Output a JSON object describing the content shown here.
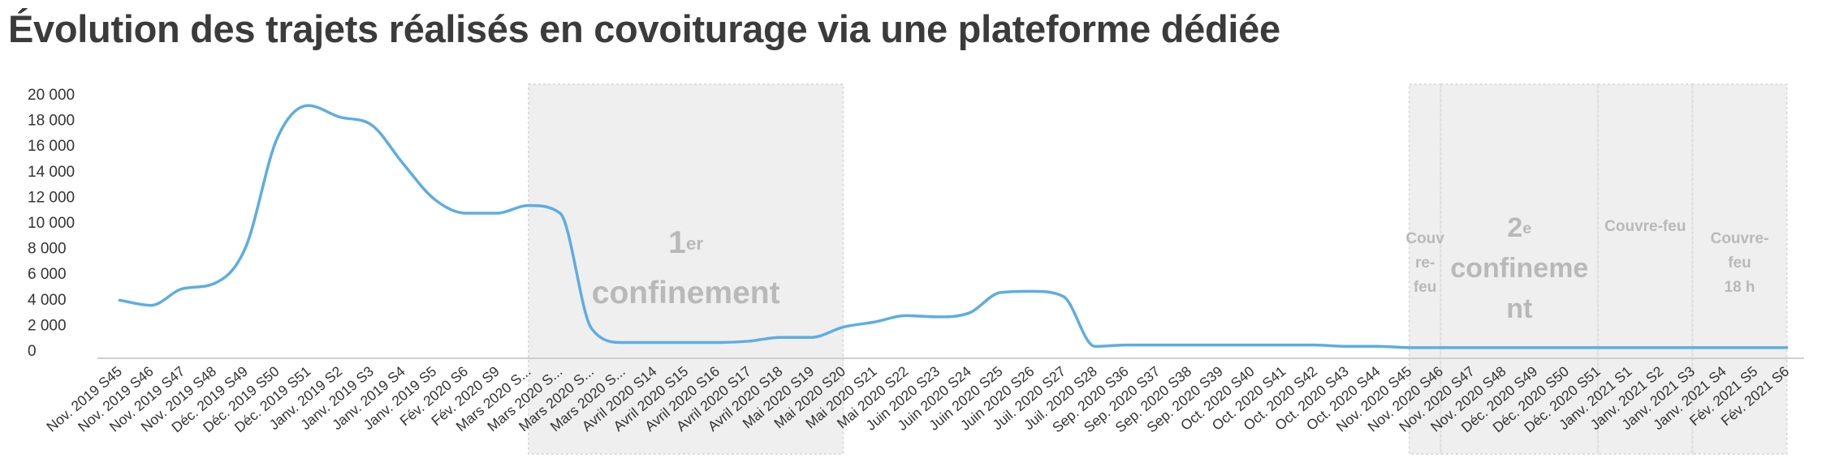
{
  "chart_data": {
    "type": "line",
    "title": "Évolution des trajets réalisés en covoiturage via une plateforme dédiée",
    "xlabel": "",
    "ylabel": "",
    "ylim": [
      0,
      20000
    ],
    "y_ticks": [
      "20 000",
      "18 000",
      "16 000",
      "14 000",
      "12 000",
      "10 000",
      "8 000",
      "6 000",
      "4 000",
      "2 000",
      "0"
    ],
    "categories": [
      "Nov. 2019 S45",
      "Nov. 2019 S46",
      "Nov. 2019 S47",
      "Nov. 2019 S48",
      "Déc. 2019 S49",
      "Déc. 2019 S50",
      "Déc. 2019 S51",
      "Janv. 2019 S2",
      "Janv. 2019 S3",
      "Janv. 2019 S4",
      "Janv. 2019 S5",
      "Fév. 2020 S6",
      "Fév. 2020 S9",
      "Mars 2020 S...",
      "Mars 2020 S...",
      "Mars 2020 S...",
      "Mars 2020 S...",
      "Avril 2020 S14",
      "Avril 2020 S15",
      "Avril 2020 S16",
      "Avril 2020 S17",
      "Avril 2020 S18",
      "Mai 2020 S19",
      "Mai 2020 S20",
      "Mai 2020 S21",
      "Mai 2020 S22",
      "Juin 2020 S23",
      "Juin 2020 S24",
      "Juin 2020 S25",
      "Juin 2020 S26",
      "Juil. 2020 S27",
      "Juil. 2020 S28",
      "Sep. 2020 S36",
      "Sep. 2020 S37",
      "Sep. 2020 S38",
      "Sep. 2020 S39",
      "Oct. 2020 S40",
      "Oct. 2020 S41",
      "Oct. 2020 S42",
      "Oct. 2020 S43",
      "Oct. 2020 S44",
      "Nov. 2020 S45",
      "Nov. 2020 S46",
      "Nov. 2020 S47",
      "Nov. 2020 S48",
      "Déc. 2020 S49",
      "Déc. 2020 S50",
      "Déc. 2020 S51",
      "Janv. 2021 S1",
      "Janv. 2021 S2",
      "Janv. 2021 S3",
      "Janv. 2021 S4",
      "Fév. 2021 S5",
      "Fév. 2021 S6"
    ],
    "series": [
      {
        "values": [
          3900,
          3500,
          4800,
          5200,
          8000,
          16500,
          19100,
          18200,
          17600,
          14600,
          11800,
          10700,
          10700,
          11300,
          10700,
          1700,
          600,
          600,
          600,
          600,
          700,
          1000,
          1000,
          1800,
          2200,
          2700,
          2600,
          2900,
          4500,
          4600,
          4200,
          300,
          400,
          400,
          400,
          400,
          400,
          400,
          400,
          300,
          300,
          200,
          200,
          200,
          200,
          200,
          200,
          200,
          200,
          200,
          200,
          200,
          200,
          200
        ]
      }
    ],
    "line_color": "#5dade2",
    "band_color": "#efefef",
    "grid": false,
    "annotations": [
      {
        "start": "Mars 2020 S...",
        "end": "Mai 2020 S20",
        "main": "1",
        "sup": "er",
        "line2": "confinement",
        "size": "large"
      },
      {
        "start": "Nov. 2020 S45",
        "end": "Nov. 2020 S46",
        "lines": [
          "Couv",
          "re-",
          "feu"
        ],
        "size": "small"
      },
      {
        "start": "Nov. 2020 S46",
        "end": "Déc. 2020 S51",
        "main": "2",
        "sup": "e",
        "line2": "confineme",
        "line3": "nt",
        "size": "medium"
      },
      {
        "start": "Déc. 2020 S51",
        "end": "Janv. 2021 S3",
        "lines": [
          "Couvre-feu"
        ],
        "size": "small"
      },
      {
        "start": "Janv. 2021 S3",
        "end": "Fév. 2021 S6",
        "lines": [
          "Couvre-",
          "feu",
          "18 h"
        ],
        "size": "small"
      }
    ]
  }
}
